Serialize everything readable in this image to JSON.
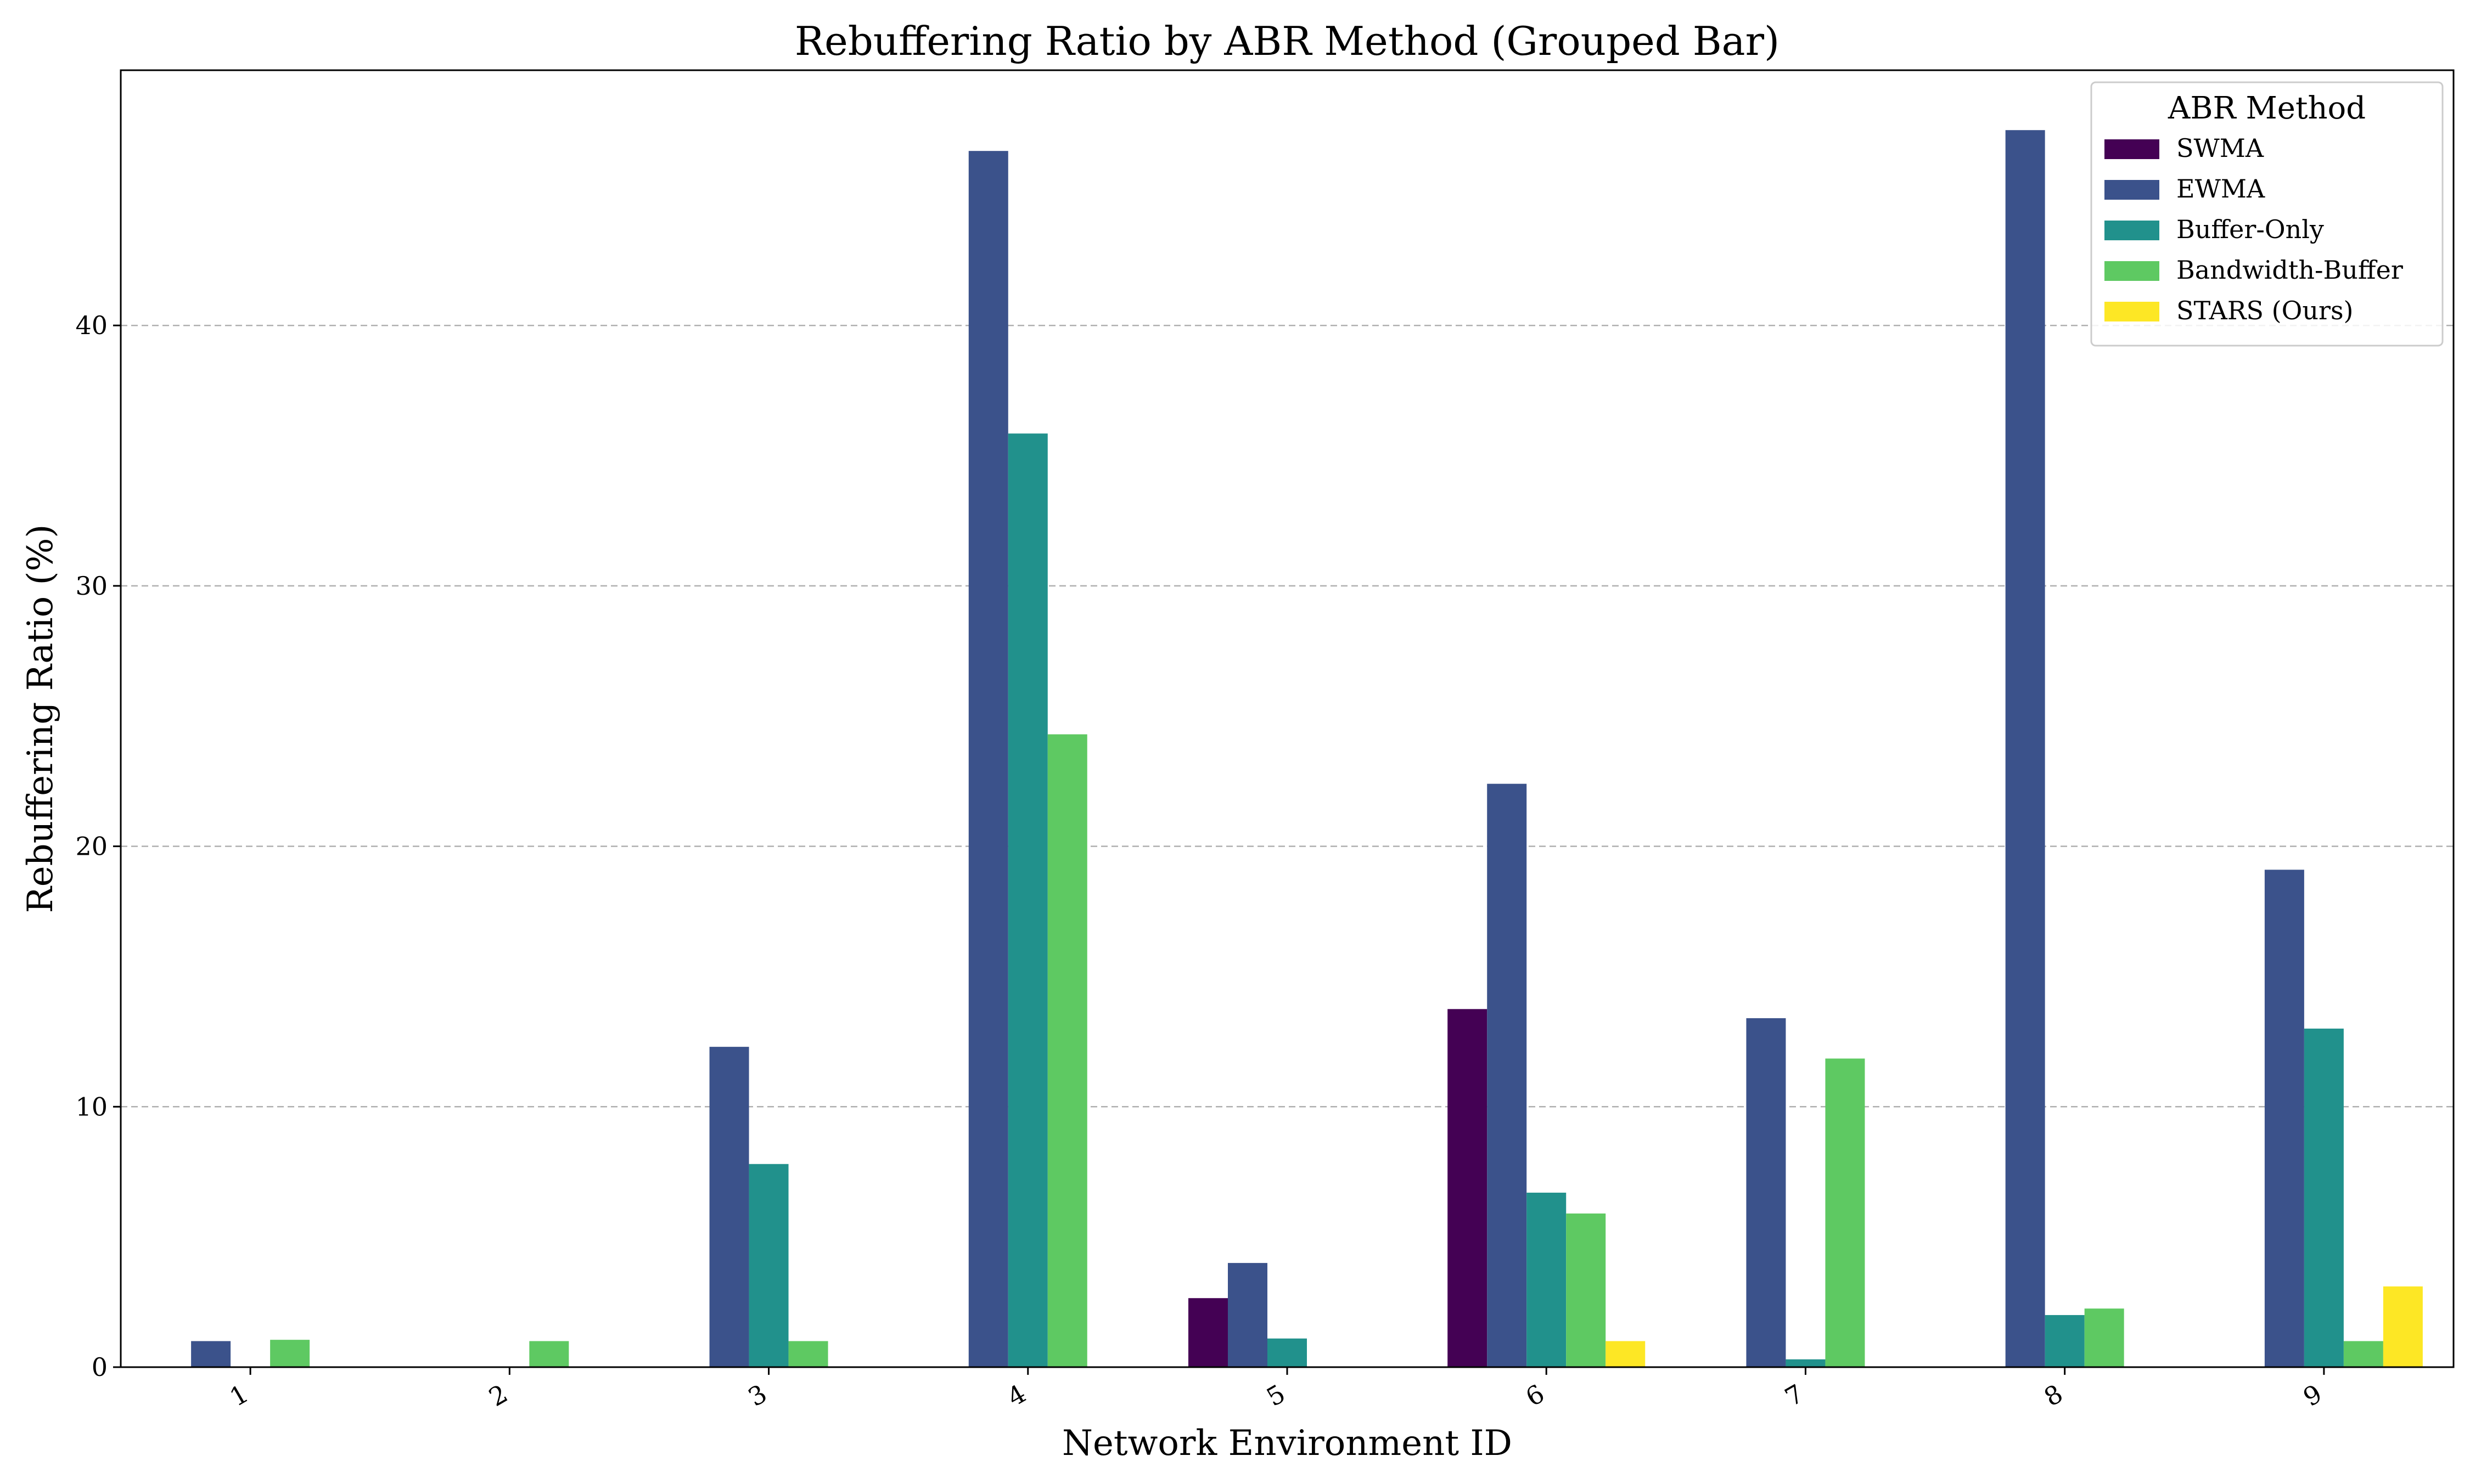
{
  "chart_data": {
    "type": "bar",
    "title": "Rebuffering Ratio by ABR Method (Grouped Bar)",
    "xlabel": "Network Environment ID",
    "ylabel": "Rebuffering Ratio (%)",
    "categories": [
      "1",
      "2",
      "3",
      "4",
      "5",
      "6",
      "7",
      "8",
      "9"
    ],
    "ylim": [
      0,
      49.8
    ],
    "yticks": [
      0,
      10,
      20,
      30,
      40
    ],
    "grid": "y-dashed",
    "legend": {
      "title": "ABR Method",
      "placement": "top-right"
    },
    "series": [
      {
        "name": "SWMA",
        "color": "#440154",
        "values": [
          0,
          0,
          0,
          0,
          2.65,
          13.75,
          0,
          0,
          0
        ]
      },
      {
        "name": "EWMA",
        "color": "#3b528b",
        "values": [
          1.0,
          0,
          12.3,
          46.7,
          4.0,
          22.4,
          13.4,
          47.5,
          19.1
        ]
      },
      {
        "name": "Buffer-Only",
        "color": "#21918c",
        "values": [
          0,
          0,
          7.8,
          35.85,
          1.1,
          6.7,
          0.3,
          2.0,
          13.0
        ]
      },
      {
        "name": "Bandwidth-Buffer",
        "color": "#5ec962",
        "values": [
          1.05,
          1.0,
          1.0,
          24.3,
          0,
          5.9,
          11.85,
          2.25,
          1.0
        ]
      },
      {
        "name": "STARS (Ours)",
        "color": "#fde725",
        "values": [
          0,
          0,
          0,
          0,
          0,
          1.0,
          0,
          0,
          3.1
        ]
      }
    ]
  }
}
